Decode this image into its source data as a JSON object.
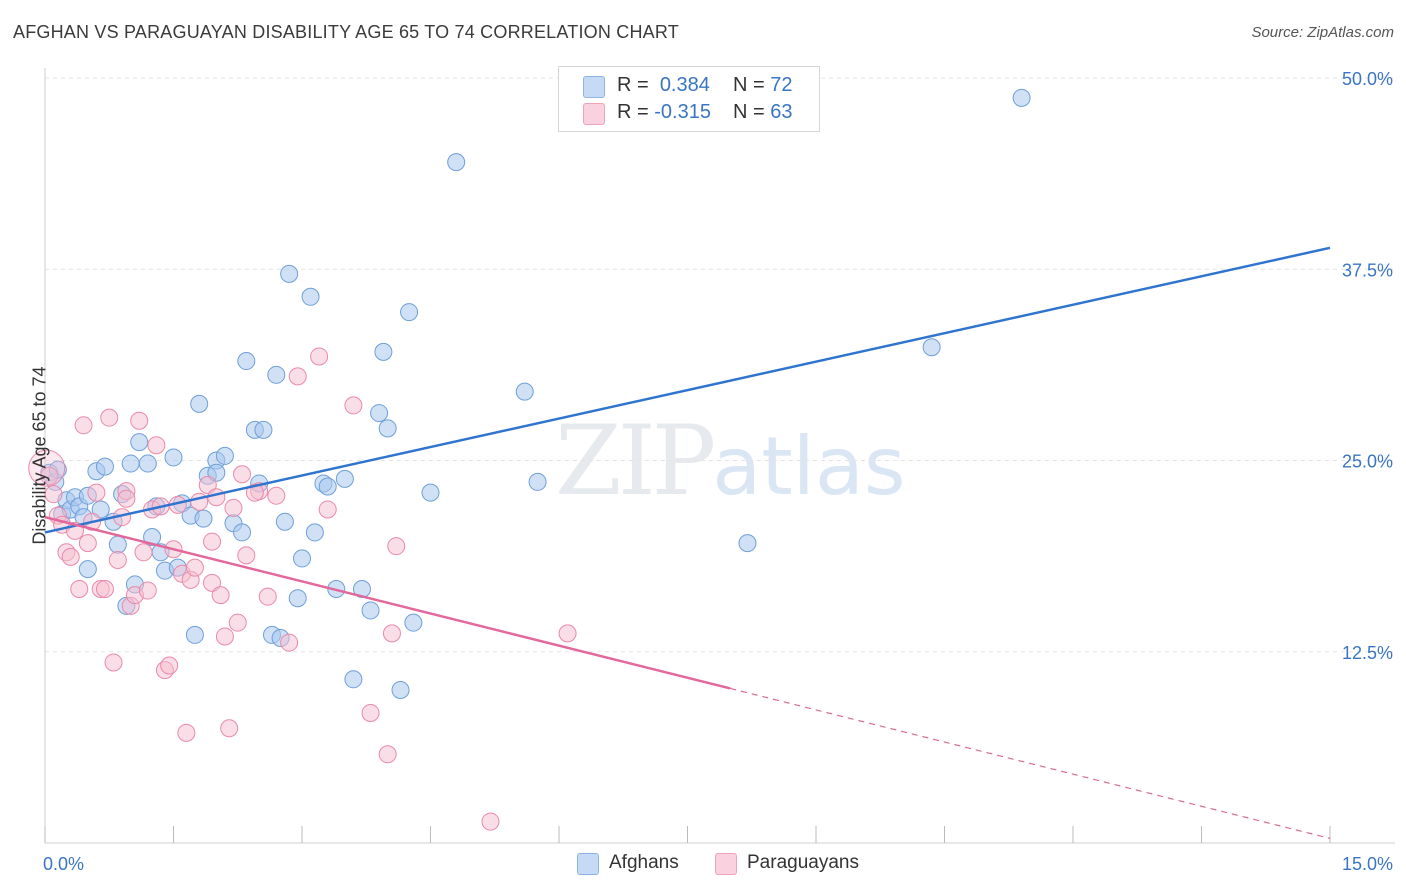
{
  "header": {
    "title": "AFGHAN VS PARAGUAYAN DISABILITY AGE 65 TO 74 CORRELATION CHART",
    "source": "Source: ZipAtlas.com"
  },
  "watermark": {
    "zip": "ZIP",
    "atlas": "atlas"
  },
  "colors": {
    "blue_fill": "#a9c8ef",
    "blue_stroke": "#6f9fd8",
    "blue_line": "#2f74cf",
    "pink_fill": "#f6bdd0",
    "pink_stroke": "#e98aa9",
    "pink_line": "#e2679a",
    "axis_text": "#3a75c4",
    "grid": "#e3e3e3"
  },
  "legend_top": {
    "rows": [
      {
        "r_label": "R =",
        "r_value": "0.384",
        "n_label": "N =",
        "n_value": "72",
        "color": "#a9c8ef"
      },
      {
        "r_label": "R =",
        "r_value": "-0.315",
        "n_label": "N =",
        "n_value": "63",
        "color": "#f6bdd0"
      }
    ]
  },
  "legend_bottom": [
    {
      "label": "Afghans",
      "color": "#a9c8ef"
    },
    {
      "label": "Paraguayans",
      "color": "#f6bdd0"
    }
  ],
  "chart_data": {
    "type": "scatter",
    "title": "AFGHAN VS PARAGUAYAN DISABILITY AGE 65 TO 74 CORRELATION CHART",
    "xlabel": "",
    "ylabel": "Disability Age 65 to 74",
    "xlim": [
      0,
      15
    ],
    "ylim": [
      0,
      50
    ],
    "x_tick_labels": [
      "0.0%",
      "15.0%"
    ],
    "y_tick_labels": [
      "12.5%",
      "25.0%",
      "37.5%",
      "50.0%"
    ],
    "y_ticks": [
      12.5,
      25.0,
      37.5,
      50.0
    ],
    "series": [
      {
        "name": "Afghans",
        "r": 0.384,
        "n": 72,
        "trend": {
          "x": [
            0,
            15
          ],
          "y": [
            20.3,
            38.9
          ]
        },
        "points": [
          [
            0.05,
            24.2
          ],
          [
            0.12,
            23.6
          ],
          [
            0.15,
            24.4
          ],
          [
            0.2,
            21.5
          ],
          [
            0.25,
            22.4
          ],
          [
            0.3,
            21.8
          ],
          [
            0.35,
            22.6
          ],
          [
            0.4,
            22.0
          ],
          [
            0.45,
            21.3
          ],
          [
            0.5,
            22.7
          ],
          [
            0.6,
            24.3
          ],
          [
            0.7,
            24.6
          ],
          [
            0.8,
            21.0
          ],
          [
            0.85,
            19.5
          ],
          [
            0.9,
            22.8
          ],
          [
            1.0,
            24.8
          ],
          [
            1.1,
            26.2
          ],
          [
            1.2,
            24.8
          ],
          [
            1.3,
            22.0
          ],
          [
            1.35,
            19.0
          ],
          [
            1.4,
            17.8
          ],
          [
            1.5,
            25.2
          ],
          [
            1.6,
            22.2
          ],
          [
            1.7,
            21.4
          ],
          [
            1.8,
            28.7
          ],
          [
            1.9,
            24.0
          ],
          [
            2.0,
            25.0
          ],
          [
            2.1,
            25.3
          ],
          [
            2.2,
            20.9
          ],
          [
            2.3,
            20.3
          ],
          [
            2.35,
            31.5
          ],
          [
            2.45,
            27.0
          ],
          [
            2.5,
            23.5
          ],
          [
            2.55,
            27.0
          ],
          [
            2.65,
            13.6
          ],
          [
            2.7,
            30.6
          ],
          [
            2.75,
            13.4
          ],
          [
            2.8,
            21.0
          ],
          [
            2.85,
            37.2
          ],
          [
            2.95,
            16.0
          ],
          [
            3.0,
            18.6
          ],
          [
            3.1,
            35.7
          ],
          [
            3.15,
            20.3
          ],
          [
            3.25,
            23.5
          ],
          [
            3.3,
            23.3
          ],
          [
            3.4,
            16.6
          ],
          [
            3.5,
            23.8
          ],
          [
            3.6,
            10.7
          ],
          [
            3.7,
            16.6
          ],
          [
            3.8,
            15.2
          ],
          [
            3.9,
            28.1
          ],
          [
            3.95,
            32.1
          ],
          [
            4.0,
            27.1
          ],
          [
            4.15,
            10.0
          ],
          [
            4.25,
            34.7
          ],
          [
            4.3,
            14.4
          ],
          [
            4.5,
            22.9
          ],
          [
            4.8,
            44.5
          ],
          [
            5.6,
            29.5
          ],
          [
            5.75,
            23.6
          ],
          [
            8.2,
            19.6
          ],
          [
            10.35,
            32.4
          ],
          [
            11.4,
            48.7
          ],
          [
            0.5,
            17.9
          ],
          [
            1.05,
            16.9
          ],
          [
            0.95,
            15.5
          ],
          [
            1.75,
            13.6
          ],
          [
            1.85,
            21.2
          ],
          [
            1.55,
            18.0
          ],
          [
            0.65,
            21.8
          ],
          [
            2.0,
            24.2
          ],
          [
            1.25,
            20.0
          ]
        ]
      },
      {
        "name": "Paraguayans",
        "r": -0.315,
        "n": 63,
        "trend": {
          "x": [
            0,
            8.0
          ],
          "y": [
            21.3,
            10.1
          ]
        },
        "trend_extension": {
          "x": [
            8.0,
            15
          ],
          "y": [
            10.1,
            0.3
          ]
        },
        "points": [
          [
            0.05,
            24.0
          ],
          [
            0.1,
            22.8
          ],
          [
            0.15,
            21.4
          ],
          [
            0.2,
            20.8
          ],
          [
            0.25,
            19.0
          ],
          [
            0.3,
            18.7
          ],
          [
            0.35,
            20.4
          ],
          [
            0.4,
            16.6
          ],
          [
            0.45,
            27.3
          ],
          [
            0.5,
            19.6
          ],
          [
            0.55,
            21.0
          ],
          [
            0.6,
            22.9
          ],
          [
            0.65,
            16.6
          ],
          [
            0.7,
            16.6
          ],
          [
            0.75,
            27.8
          ],
          [
            0.8,
            11.8
          ],
          [
            0.85,
            18.5
          ],
          [
            0.9,
            21.3
          ],
          [
            0.95,
            23.0
          ],
          [
            1.0,
            15.5
          ],
          [
            1.05,
            16.2
          ],
          [
            1.1,
            27.6
          ],
          [
            1.15,
            19.0
          ],
          [
            1.2,
            16.5
          ],
          [
            1.25,
            21.8
          ],
          [
            1.3,
            26.0
          ],
          [
            1.35,
            22.0
          ],
          [
            1.4,
            11.3
          ],
          [
            1.45,
            11.6
          ],
          [
            1.55,
            22.1
          ],
          [
            1.6,
            17.6
          ],
          [
            1.65,
            7.2
          ],
          [
            1.7,
            17.2
          ],
          [
            1.75,
            18.0
          ],
          [
            1.8,
            22.3
          ],
          [
            1.9,
            23.4
          ],
          [
            1.95,
            17.0
          ],
          [
            2.0,
            22.6
          ],
          [
            2.05,
            16.2
          ],
          [
            2.1,
            13.5
          ],
          [
            2.15,
            7.5
          ],
          [
            2.2,
            21.9
          ],
          [
            2.25,
            14.4
          ],
          [
            2.3,
            24.1
          ],
          [
            2.35,
            18.8
          ],
          [
            2.5,
            23.0
          ],
          [
            2.6,
            16.1
          ],
          [
            2.7,
            22.7
          ],
          [
            2.85,
            13.1
          ],
          [
            2.95,
            30.5
          ],
          [
            3.2,
            31.8
          ],
          [
            3.3,
            21.8
          ],
          [
            3.6,
            28.6
          ],
          [
            3.8,
            8.5
          ],
          [
            4.0,
            5.8
          ],
          [
            4.05,
            13.7
          ],
          [
            4.1,
            19.4
          ],
          [
            5.2,
            1.4
          ],
          [
            6.1,
            13.7
          ],
          [
            1.95,
            19.7
          ],
          [
            0.95,
            22.5
          ],
          [
            1.5,
            19.2
          ],
          [
            2.45,
            22.9
          ]
        ]
      }
    ]
  }
}
